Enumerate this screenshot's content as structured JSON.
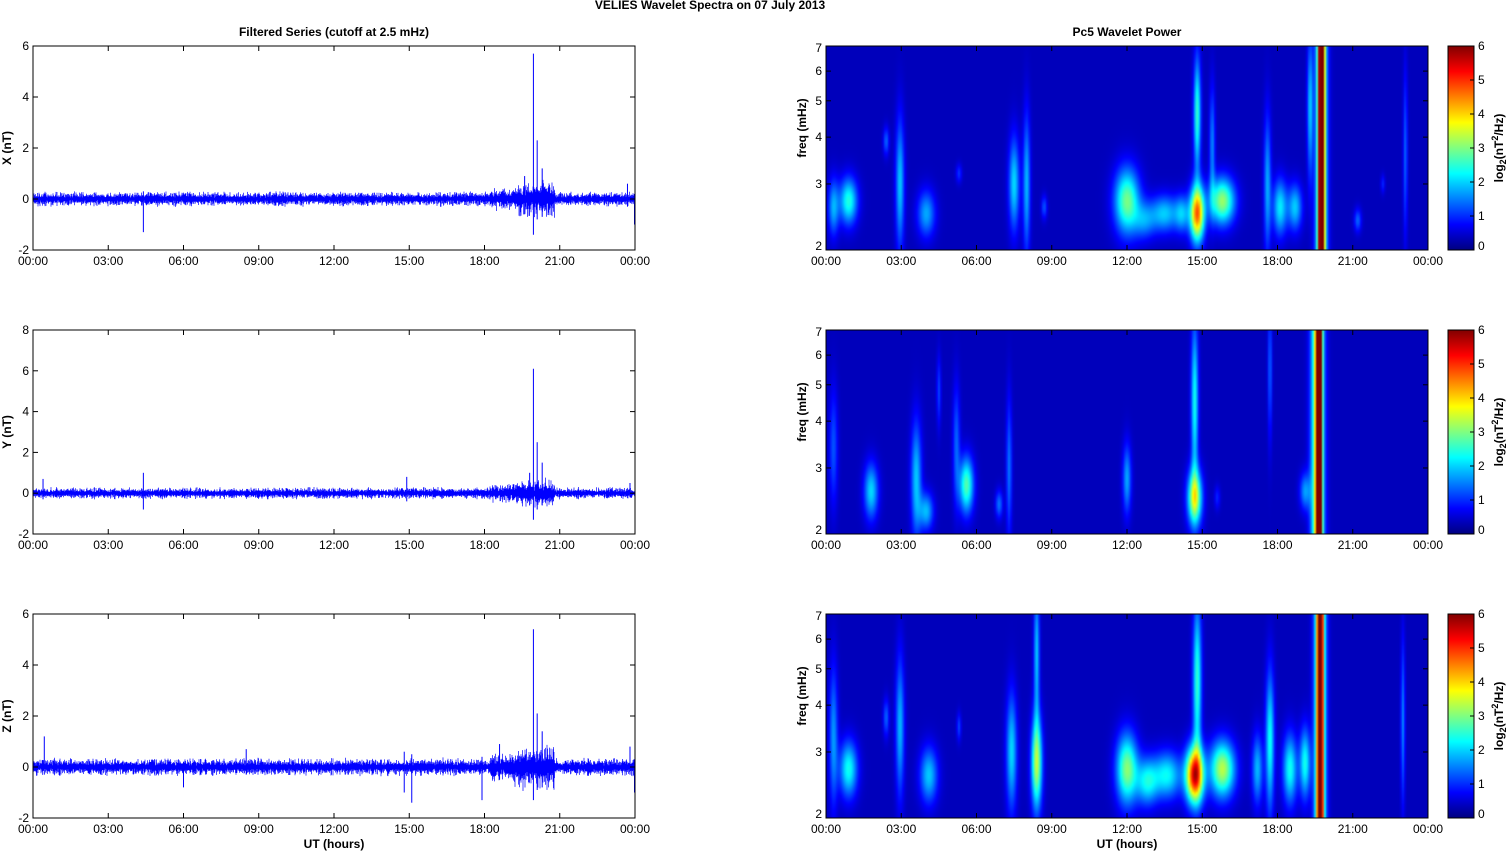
{
  "figure": {
    "main_title": "VELIES Wavelet Spectra on 07 July      2013",
    "left_title": "Filtered Series (cutoff at 2.5 mHz)",
    "right_title": "Pc5 Wavelet Power"
  },
  "chart_data": [
    {
      "type": "line",
      "ylabel": "X (nT)",
      "xlabel": "",
      "xlim": [
        0,
        24
      ],
      "ylim": [
        -2,
        6
      ],
      "yticks": [
        -2,
        0,
        2,
        4,
        6
      ],
      "xtick_labels": [
        "00:00",
        "03:00",
        "06:00",
        "09:00",
        "12:00",
        "15:00",
        "18:00",
        "21:00",
        "00:00"
      ],
      "series": [
        {
          "color": "#0000ff",
          "noise_amp": 0.15,
          "events": [
            {
              "t": 4.4,
              "min": -1.3,
              "max": 0.3
            },
            {
              "t": 19.6,
              "min": -0.6,
              "max": 0.9
            },
            {
              "t": 19.95,
              "min": -1.4,
              "max": 5.7
            },
            {
              "t": 20.1,
              "min": -0.8,
              "max": 2.3
            },
            {
              "t": 20.3,
              "min": -0.7,
              "max": 1.2
            },
            {
              "t": 23.7,
              "min": -0.3,
              "max": 0.6
            },
            {
              "t": 23.98,
              "min": -1.0,
              "max": 0.2
            }
          ]
        }
      ]
    },
    {
      "type": "line",
      "ylabel": "Y (nT)",
      "xlabel": "",
      "xlim": [
        0,
        24
      ],
      "ylim": [
        -2,
        8
      ],
      "yticks": [
        -2,
        0,
        2,
        4,
        6,
        8
      ],
      "xtick_labels": [
        "00:00",
        "03:00",
        "06:00",
        "09:00",
        "12:00",
        "15:00",
        "18:00",
        "21:00",
        "00:00"
      ],
      "series": [
        {
          "color": "#0000ff",
          "noise_amp": 0.15,
          "events": [
            {
              "t": 0.4,
              "min": -0.3,
              "max": 0.7
            },
            {
              "t": 4.4,
              "min": -0.8,
              "max": 1.0
            },
            {
              "t": 14.9,
              "min": -0.4,
              "max": 0.8
            },
            {
              "t": 19.8,
              "min": -0.6,
              "max": 1.0
            },
            {
              "t": 19.95,
              "min": -1.3,
              "max": 6.1
            },
            {
              "t": 20.1,
              "min": -0.8,
              "max": 2.5
            },
            {
              "t": 20.3,
              "min": -0.6,
              "max": 1.5
            },
            {
              "t": 23.8,
              "min": -0.2,
              "max": 0.5
            }
          ]
        }
      ]
    },
    {
      "type": "line",
      "ylabel": "Z (nT)",
      "xlabel": "UT (hours)",
      "xlim": [
        0,
        24
      ],
      "ylim": [
        -2,
        6
      ],
      "yticks": [
        -2,
        0,
        2,
        4,
        6
      ],
      "xtick_labels": [
        "00:00",
        "03:00",
        "06:00",
        "09:00",
        "12:00",
        "15:00",
        "18:00",
        "21:00",
        "00:00"
      ],
      "series": [
        {
          "color": "#0000ff",
          "noise_amp": 0.18,
          "events": [
            {
              "t": 0.45,
              "min": -0.3,
              "max": 1.2
            },
            {
              "t": 6.0,
              "min": -0.8,
              "max": 0.2
            },
            {
              "t": 8.5,
              "min": -0.3,
              "max": 0.7
            },
            {
              "t": 14.8,
              "min": -1.0,
              "max": 0.6
            },
            {
              "t": 15.1,
              "min": -1.4,
              "max": 0.5
            },
            {
              "t": 17.9,
              "min": -1.3,
              "max": 0.4
            },
            {
              "t": 18.6,
              "min": -0.5,
              "max": 0.9
            },
            {
              "t": 19.95,
              "min": -1.3,
              "max": 5.4
            },
            {
              "t": 20.1,
              "min": -0.9,
              "max": 2.1
            },
            {
              "t": 20.3,
              "min": -0.8,
              "max": 1.4
            },
            {
              "t": 23.8,
              "min": -0.3,
              "max": 0.8
            },
            {
              "t": 23.98,
              "min": -1.0,
              "max": 0.3
            }
          ]
        }
      ]
    },
    {
      "type": "heatmap",
      "ylabel": "freq (mHz)",
      "xlabel": "",
      "xlim": [
        0,
        24
      ],
      "ylim": [
        2,
        7
      ],
      "yscale": "log",
      "yticks": [
        2,
        3,
        4,
        5,
        6,
        7
      ],
      "xtick_labels": [
        "00:00",
        "03:00",
        "06:00",
        "09:00",
        "12:00",
        "15:00",
        "18:00",
        "21:00",
        "00:00"
      ],
      "colorbar": {
        "label": "log2(nT^2/Hz)",
        "range": [
          0,
          6
        ],
        "ticks": [
          0,
          1,
          2,
          3,
          4,
          5,
          6
        ],
        "colormap": "jet",
        "background_value": 0.35
      },
      "blobs": [
        {
          "t": 0.3,
          "f": 2.6,
          "amp": 1.4,
          "wt": 0.15,
          "wf": 0.12
        },
        {
          "t": 0.9,
          "f": 2.7,
          "amp": 2.1,
          "wt": 0.25,
          "wf": 0.1
        },
        {
          "t": 2.4,
          "f": 3.9,
          "amp": 1.0,
          "wt": 0.08,
          "wf": 0.06
        },
        {
          "t": 2.95,
          "f": 3.0,
          "amp": 1.6,
          "wt": 0.12,
          "wf": 0.28
        },
        {
          "t": 4.0,
          "f": 2.5,
          "amp": 1.4,
          "wt": 0.25,
          "wf": 0.1
        },
        {
          "t": 5.3,
          "f": 3.2,
          "amp": 0.7,
          "wt": 0.08,
          "wf": 0.04
        },
        {
          "t": 7.5,
          "f": 3.0,
          "amp": 1.7,
          "wt": 0.15,
          "wf": 0.2
        },
        {
          "t": 8.0,
          "f": 3.0,
          "amp": 1.5,
          "wt": 0.1,
          "wf": 0.3
        },
        {
          "t": 8.7,
          "f": 2.6,
          "amp": 0.9,
          "wt": 0.08,
          "wf": 0.05
        },
        {
          "t": 12.0,
          "f": 2.7,
          "amp": 2.6,
          "wt": 0.35,
          "wf": 0.14
        },
        {
          "t": 12.7,
          "f": 2.4,
          "amp": 1.1,
          "wt": 0.3,
          "wf": 0.08
        },
        {
          "t": 13.5,
          "f": 2.5,
          "amp": 1.6,
          "wt": 0.4,
          "wf": 0.08
        },
        {
          "t": 14.2,
          "f": 2.5,
          "amp": 1.3,
          "wt": 0.2,
          "wf": 0.08
        },
        {
          "t": 14.8,
          "f": 2.5,
          "amp": 4.3,
          "wt": 0.2,
          "wf": 0.12
        },
        {
          "t": 14.8,
          "f": 4.6,
          "amp": 2.2,
          "wt": 0.1,
          "wf": 0.25
        },
        {
          "t": 15.8,
          "f": 2.7,
          "amp": 2.8,
          "wt": 0.35,
          "wf": 0.1
        },
        {
          "t": 15.4,
          "f": 3.8,
          "amp": 1.2,
          "wt": 0.08,
          "wf": 0.25
        },
        {
          "t": 17.6,
          "f": 3.0,
          "amp": 1.4,
          "wt": 0.1,
          "wf": 0.3
        },
        {
          "t": 18.1,
          "f": 2.6,
          "amp": 1.8,
          "wt": 0.2,
          "wf": 0.12
        },
        {
          "t": 18.7,
          "f": 2.6,
          "amp": 1.6,
          "wt": 0.2,
          "wf": 0.1
        },
        {
          "t": 19.3,
          "f": 4.8,
          "amp": 1.6,
          "wt": 0.08,
          "wf": 0.3
        },
        {
          "t": 21.2,
          "f": 2.4,
          "amp": 1.0,
          "wt": 0.1,
          "wf": 0.05
        },
        {
          "t": 22.2,
          "f": 3.0,
          "amp": 0.6,
          "wt": 0.06,
          "wf": 0.04
        },
        {
          "t": 23.1,
          "f": 3.6,
          "amp": 1.0,
          "wt": 0.06,
          "wf": 0.35
        }
      ],
      "streaks": [
        {
          "t": 19.75,
          "amp": 5.8,
          "wt": 0.08
        },
        {
          "t": 19.75,
          "amp": 3.0,
          "wt": 0.16
        }
      ]
    },
    {
      "type": "heatmap",
      "ylabel": "freq (mHz)",
      "xlabel": "",
      "xlim": [
        0,
        24
      ],
      "ylim": [
        2,
        7
      ],
      "yscale": "log",
      "yticks": [
        2,
        3,
        4,
        5,
        6,
        7
      ],
      "xtick_labels": [
        "00:00",
        "03:00",
        "06:00",
        "09:00",
        "12:00",
        "15:00",
        "18:00",
        "21:00",
        "00:00"
      ],
      "colorbar": {
        "label": "log2(nT^2/Hz)",
        "range": [
          0,
          6
        ],
        "ticks": [
          0,
          1,
          2,
          3,
          4,
          5,
          6
        ],
        "colormap": "jet",
        "background_value": 0.35
      },
      "blobs": [
        {
          "t": 0.3,
          "f": 3.4,
          "amp": 0.9,
          "wt": 0.12,
          "wf": 0.25
        },
        {
          "t": 1.8,
          "f": 2.6,
          "amp": 1.7,
          "wt": 0.2,
          "wf": 0.12
        },
        {
          "t": 3.6,
          "f": 2.8,
          "amp": 1.6,
          "wt": 0.15,
          "wf": 0.25
        },
        {
          "t": 4.0,
          "f": 2.3,
          "amp": 1.5,
          "wt": 0.2,
          "wf": 0.08
        },
        {
          "t": 4.5,
          "f": 4.8,
          "amp": 0.8,
          "wt": 0.06,
          "wf": 0.15
        },
        {
          "t": 5.2,
          "f": 3.5,
          "amp": 1.0,
          "wt": 0.1,
          "wf": 0.25
        },
        {
          "t": 5.6,
          "f": 2.7,
          "amp": 2.4,
          "wt": 0.2,
          "wf": 0.12
        },
        {
          "t": 6.9,
          "f": 2.4,
          "amp": 1.1,
          "wt": 0.1,
          "wf": 0.06
        },
        {
          "t": 7.3,
          "f": 3.0,
          "amp": 1.1,
          "wt": 0.08,
          "wf": 0.3
        },
        {
          "t": 12.0,
          "f": 2.8,
          "amp": 1.4,
          "wt": 0.12,
          "wf": 0.15
        },
        {
          "t": 14.7,
          "f": 2.5,
          "amp": 3.2,
          "wt": 0.2,
          "wf": 0.12
        },
        {
          "t": 14.7,
          "f": 4.5,
          "amp": 2.0,
          "wt": 0.1,
          "wf": 0.35
        },
        {
          "t": 15.6,
          "f": 2.5,
          "amp": 0.6,
          "wt": 0.08,
          "wf": 0.05
        },
        {
          "t": 17.7,
          "f": 5.5,
          "amp": 1.0,
          "wt": 0.06,
          "wf": 0.3
        },
        {
          "t": 19.1,
          "f": 2.6,
          "amp": 1.3,
          "wt": 0.15,
          "wf": 0.08
        }
      ],
      "streaks": [
        {
          "t": 19.65,
          "amp": 5.8,
          "wt": 0.08
        },
        {
          "t": 19.6,
          "amp": 3.2,
          "wt": 0.18
        }
      ]
    },
    {
      "type": "heatmap",
      "ylabel": "freq (mHz)",
      "xlabel": "UT (hours)",
      "xlim": [
        0,
        24
      ],
      "ylim": [
        2,
        7
      ],
      "yscale": "log",
      "yticks": [
        2,
        3,
        4,
        5,
        6,
        7
      ],
      "xtick_labels": [
        "00:00",
        "03:00",
        "06:00",
        "09:00",
        "12:00",
        "15:00",
        "18:00",
        "21:00",
        "00:00"
      ],
      "colorbar": {
        "label": "log2(nT^2/Hz)",
        "range": [
          0,
          6
        ],
        "ticks": [
          0,
          1,
          2,
          3,
          4,
          5,
          6
        ],
        "colormap": "jet",
        "background_value": 0.35
      },
      "blobs": [
        {
          "t": 0.3,
          "f": 3.3,
          "amp": 1.3,
          "wt": 0.12,
          "wf": 0.3
        },
        {
          "t": 0.9,
          "f": 2.7,
          "amp": 2.0,
          "wt": 0.25,
          "wf": 0.12
        },
        {
          "t": 2.4,
          "f": 3.7,
          "amp": 1.0,
          "wt": 0.08,
          "wf": 0.08
        },
        {
          "t": 2.95,
          "f": 3.5,
          "amp": 1.5,
          "wt": 0.12,
          "wf": 0.3
        },
        {
          "t": 4.1,
          "f": 2.6,
          "amp": 1.6,
          "wt": 0.25,
          "wf": 0.12
        },
        {
          "t": 5.3,
          "f": 3.5,
          "amp": 0.8,
          "wt": 0.06,
          "wf": 0.06
        },
        {
          "t": 7.4,
          "f": 3.0,
          "amp": 1.7,
          "wt": 0.15,
          "wf": 0.25
        },
        {
          "t": 8.4,
          "f": 2.8,
          "amp": 3.0,
          "wt": 0.15,
          "wf": 0.2
        },
        {
          "t": 8.4,
          "f": 5.5,
          "amp": 1.6,
          "wt": 0.08,
          "wf": 0.3
        },
        {
          "t": 12.0,
          "f": 2.7,
          "amp": 2.7,
          "wt": 0.3,
          "wf": 0.15
        },
        {
          "t": 12.8,
          "f": 2.5,
          "amp": 1.8,
          "wt": 0.3,
          "wf": 0.1
        },
        {
          "t": 13.6,
          "f": 2.6,
          "amp": 1.9,
          "wt": 0.4,
          "wf": 0.1
        },
        {
          "t": 14.7,
          "f": 2.6,
          "amp": 5.0,
          "wt": 0.25,
          "wf": 0.12
        },
        {
          "t": 14.8,
          "f": 4.6,
          "amp": 2.2,
          "wt": 0.12,
          "wf": 0.35
        },
        {
          "t": 15.8,
          "f": 2.7,
          "amp": 3.0,
          "wt": 0.35,
          "wf": 0.12
        },
        {
          "t": 17.2,
          "f": 2.7,
          "amp": 1.5,
          "wt": 0.15,
          "wf": 0.15
        },
        {
          "t": 17.7,
          "f": 3.2,
          "amp": 2.0,
          "wt": 0.12,
          "wf": 0.3
        },
        {
          "t": 18.5,
          "f": 2.7,
          "amp": 2.0,
          "wt": 0.2,
          "wf": 0.15
        },
        {
          "t": 19.1,
          "f": 2.8,
          "amp": 2.0,
          "wt": 0.15,
          "wf": 0.15
        },
        {
          "t": 23.0,
          "f": 3.6,
          "amp": 1.2,
          "wt": 0.06,
          "wf": 0.35
        }
      ],
      "streaks": [
        {
          "t": 19.7,
          "amp": 5.6,
          "wt": 0.08
        },
        {
          "t": 19.7,
          "amp": 3.2,
          "wt": 0.16
        }
      ]
    }
  ]
}
